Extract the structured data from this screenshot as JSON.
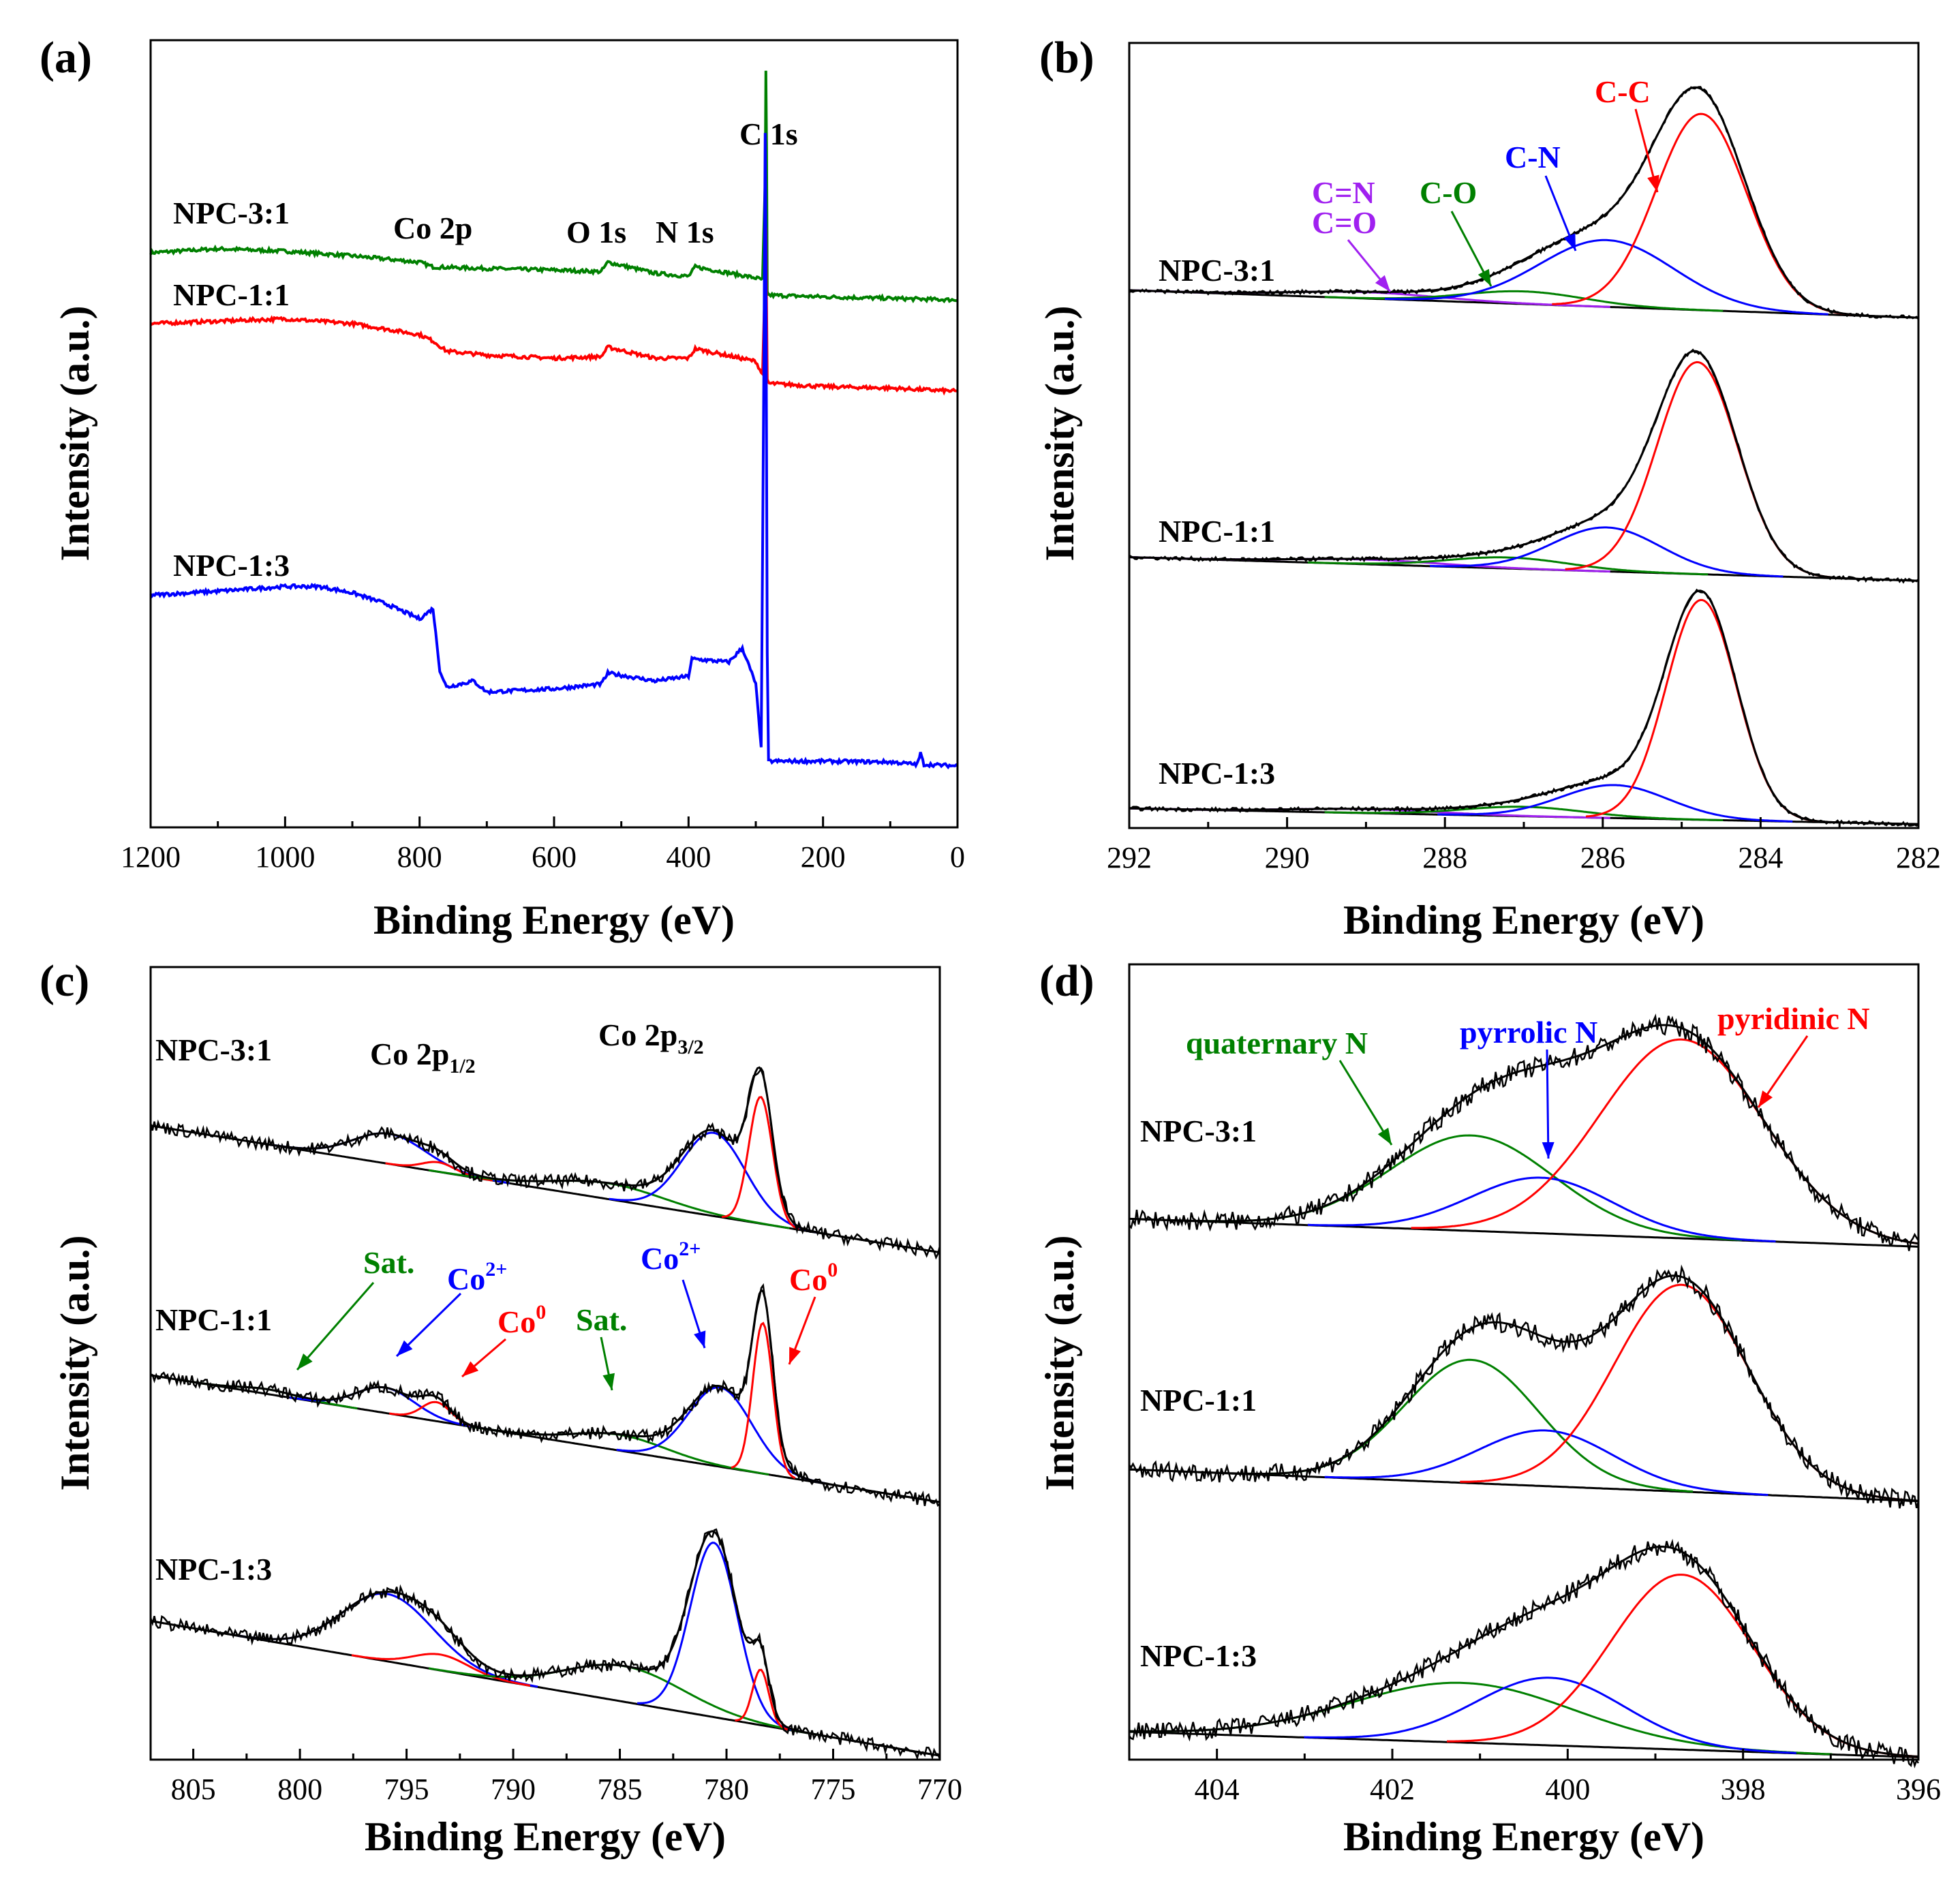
{
  "colors": {
    "black": "#000000",
    "red": "#ff0000",
    "blue": "#0000ff",
    "green": "#008000",
    "purple": "#a020f0"
  },
  "chart_data": [
    {
      "id": "a",
      "panel_label": "(a)",
      "type": "line",
      "title": "",
      "xlabel": "Binding Energy (eV)",
      "ylabel": "Intensity (a.u.)",
      "xlim": [
        1200,
        0
      ],
      "ylim": [
        0,
        100
      ],
      "xticks": [
        1200,
        1000,
        800,
        600,
        400,
        200,
        0
      ],
      "xtick_labels": [
        "1200",
        "1000",
        "800",
        "600",
        "400",
        "200",
        "0"
      ],
      "series": [
        {
          "name": "NPC-3:1",
          "color": "#008000",
          "x": [
            1200,
            1100,
            1000,
            900,
            800,
            780,
            700,
            600,
            530,
            520,
            450,
            400,
            390,
            300,
            290,
            286,
            285,
            284,
            283,
            280,
            200,
            100,
            0
          ],
          "values": [
            73.0,
            73.5,
            73.2,
            72.6,
            71.8,
            71.2,
            71.0,
            70.8,
            70.6,
            71.8,
            70.4,
            70.0,
            71.2,
            69.8,
            69.6,
            82.0,
            96.0,
            86.0,
            68.0,
            67.6,
            67.4,
            67.2,
            67.0
          ]
        },
        {
          "name": "NPC-1:1",
          "color": "#ff0000",
          "x": [
            1200,
            1100,
            1000,
            900,
            800,
            780,
            760,
            700,
            600,
            530,
            520,
            450,
            400,
            390,
            300,
            290,
            286,
            285,
            284,
            283,
            280,
            200,
            100,
            0
          ],
          "values": [
            64.0,
            64.3,
            64.6,
            64.0,
            62.6,
            61.8,
            60.5,
            60.0,
            59.6,
            59.8,
            61.0,
            59.6,
            59.6,
            60.8,
            59.2,
            57.5,
            70.0,
            76.0,
            66.0,
            56.8,
            56.4,
            56.0,
            55.8,
            55.4
          ]
        },
        {
          "name": "NPC-1:3",
          "color": "#0000ff",
          "x": [
            1200,
            1100,
            1000,
            950,
            900,
            850,
            800,
            780,
            770,
            760,
            720,
            700,
            600,
            530,
            520,
            450,
            400,
            395,
            340,
            320,
            300,
            292,
            288,
            286,
            285,
            284,
            283,
            281,
            280,
            200,
            100,
            60,
            55,
            50,
            0
          ],
          "values": [
            29.5,
            30.0,
            30.6,
            30.6,
            29.8,
            28.4,
            26.5,
            27.8,
            20.0,
            17.8,
            18.6,
            17.2,
            17.6,
            18.2,
            19.6,
            18.6,
            19.2,
            21.4,
            21.0,
            22.8,
            18.2,
            10.0,
            58.0,
            88.0,
            72.0,
            48.0,
            22.0,
            8.4,
            8.4,
            8.4,
            8.3,
            8.0,
            9.4,
            8.0,
            7.8
          ]
        }
      ],
      "sample_labels": [
        "NPC-3:1",
        "NPC-1:1",
        "NPC-1:3"
      ],
      "annotations": [
        {
          "text": "C 1s",
          "x": 285
        },
        {
          "text": "Co 2p",
          "x": 770
        },
        {
          "text": "O 1s",
          "x": 530
        },
        {
          "text": "N 1s",
          "x": 400
        }
      ]
    },
    {
      "id": "b",
      "panel_label": "(b)",
      "type": "line",
      "title": "",
      "xlabel": "Binding Energy (eV)",
      "ylabel": "Intensity (a.u.)",
      "xlim": [
        292,
        282
      ],
      "ylim": [
        0,
        100
      ],
      "xticks": [
        292,
        290,
        288,
        286,
        284,
        282
      ],
      "xtick_labels": [
        "292",
        "290",
        "288",
        "286",
        "284",
        "282"
      ],
      "components": [
        {
          "name": "C=N / C=O",
          "color": "#a020f0"
        },
        {
          "name": "C-O",
          "color": "#008000"
        },
        {
          "name": "C-N",
          "color": "#0000ff"
        },
        {
          "name": "C-C",
          "color": "#ff0000"
        }
      ],
      "samples": [
        {
          "name": "NPC-3:1",
          "baseline": [
            68.5,
            65.0
          ],
          "offset_y": 65.0,
          "peaks": [
            {
              "component": "C=N / C=O",
              "center": 289.0,
              "height": 0.8,
              "fwhm": 2.2
            },
            {
              "component": "C-O",
              "center": 287.0,
              "height": 1.6,
              "fwhm": 1.8
            },
            {
              "component": "C-N",
              "center": 285.95,
              "height": 8.5,
              "fwhm": 2.0
            },
            {
              "component": "C-C",
              "center": 284.75,
              "height": 25.0,
              "fwhm": 1.35
            }
          ]
        },
        {
          "name": "NPC-1:1",
          "baseline": [
            34.5,
            31.5
          ],
          "offset_y": 31.5,
          "peaks": [
            {
              "component": "C=N / C=O",
              "center": 289.0,
              "height": 0.6,
              "fwhm": 2.2
            },
            {
              "component": "C-O",
              "center": 287.2,
              "height": 1.4,
              "fwhm": 1.8
            },
            {
              "component": "C-N",
              "center": 285.95,
              "height": 5.6,
              "fwhm": 1.6
            },
            {
              "component": "C-C",
              "center": 284.8,
              "height": 27.0,
              "fwhm": 1.2
            }
          ]
        },
        {
          "name": "NPC-1:3",
          "baseline": [
            2.5,
            0.5
          ],
          "offset_y": 0.5,
          "peaks": [
            {
              "component": "C=N / C=O",
              "center": 289.0,
              "height": 0.5,
              "fwhm": 2.2
            },
            {
              "component": "C-O",
              "center": 287.0,
              "height": 1.2,
              "fwhm": 1.8
            },
            {
              "component": "C-N",
              "center": 285.85,
              "height": 4.2,
              "fwhm": 1.6
            },
            {
              "component": "C-C",
              "center": 284.75,
              "height": 28.0,
              "fwhm": 1.05
            }
          ]
        }
      ],
      "annotations": [
        {
          "text": "C-C",
          "component": "C-C"
        },
        {
          "text": "C-N",
          "component": "C-N"
        },
        {
          "text": "C-O",
          "component": "C-O"
        },
        {
          "text": "C=N",
          "component": "C=N / C=O"
        },
        {
          "text": "C=O",
          "component": "C=N / C=O"
        }
      ]
    },
    {
      "id": "c",
      "panel_label": "(c)",
      "type": "line",
      "title": "",
      "xlabel": "Binding Energy (eV)",
      "ylabel": "Intensity (a.u.)",
      "xlim": [
        807,
        770
      ],
      "ylim": [
        0,
        100
      ],
      "xticks": [
        805,
        800,
        795,
        790,
        785,
        780,
        775,
        770
      ],
      "xtick_labels": [
        "805",
        "800",
        "795",
        "790",
        "785",
        "780",
        "775",
        "770"
      ],
      "components": [
        {
          "name": "Sat.",
          "color": "#008000"
        },
        {
          "name": "Co2+",
          "color": "#0000ff"
        },
        {
          "name": "Co0",
          "color": "#ff0000"
        }
      ],
      "samples": [
        {
          "name": "NPC-3:1",
          "baseline": [
            80.0,
            64.0
          ],
          "offset_y": 64.0,
          "peaks": [
            {
              "component": "Co2+",
              "center": 795.8,
              "height": 3.8,
              "fwhm": 4.0
            },
            {
              "component": "Co0",
              "center": 793.5,
              "height": 1.2,
              "fwhm": 1.8
            },
            {
              "component": "Sat.",
              "center": 785.5,
              "height": 2.0,
              "fwhm": 6.0
            },
            {
              "component": "Co2+",
              "center": 780.6,
              "height": 10.5,
              "fwhm": 3.5
            },
            {
              "component": "Co0",
              "center": 778.4,
              "height": 16.0,
              "fwhm": 1.3
            }
          ]
        },
        {
          "name": "NPC-1:1",
          "baseline": [
            48.5,
            32.5
          ],
          "offset_y": 32.5,
          "peaks": [
            {
              "component": "Sat.",
              "center": 801.5,
              "height": 0.6,
              "fwhm": 3.0
            },
            {
              "component": "Co2+",
              "center": 796.0,
              "height": 3.2,
              "fwhm": 3.2
            },
            {
              "component": "Co0",
              "center": 793.6,
              "height": 2.4,
              "fwhm": 1.6
            },
            {
              "component": "Sat.",
              "center": 785.0,
              "height": 2.0,
              "fwhm": 5.0
            },
            {
              "component": "Co2+",
              "center": 780.3,
              "height": 10.0,
              "fwhm": 3.5
            },
            {
              "component": "Co0",
              "center": 778.3,
              "height": 19.0,
              "fwhm": 1.1
            }
          ]
        },
        {
          "name": "NPC-1:3",
          "baseline": [
            17.5,
            0.5
          ],
          "offset_y": 0.5,
          "peaks": [
            {
              "component": "Co2+",
              "center": 795.9,
              "height": 8.5,
              "fwhm": 5.0
            },
            {
              "component": "Co0",
              "center": 793.4,
              "height": 2.0,
              "fwhm": 3.0
            },
            {
              "component": "Sat.",
              "center": 784.8,
              "height": 4.5,
              "fwhm": 6.5
            },
            {
              "component": "Co2+",
              "center": 780.6,
              "height": 22.0,
              "fwhm": 2.6
            },
            {
              "component": "Co0",
              "center": 778.4,
              "height": 7.0,
              "fwhm": 0.9
            }
          ]
        }
      ],
      "annotations": [
        {
          "text": "Co 2p",
          "sub": "1/2"
        },
        {
          "text": "Co 2p",
          "sub": "3/2"
        },
        {
          "text": "Sat.",
          "component": "Sat."
        },
        {
          "text": "Co",
          "sup": "2+",
          "component": "Co2+"
        },
        {
          "text": "Co",
          "sup": "0",
          "component": "Co0"
        },
        {
          "text": "Sat.",
          "component": "Sat."
        },
        {
          "text": "Co",
          "sup": "2+",
          "component": "Co2+"
        },
        {
          "text": "Co",
          "sup": "0",
          "component": "Co0"
        }
      ]
    },
    {
      "id": "d",
      "panel_label": "(d)",
      "type": "line",
      "title": "",
      "xlabel": "Binding Energy (eV)",
      "ylabel": "Intensity (a.u.)",
      "xlim": [
        405,
        396
      ],
      "ylim": [
        0,
        100
      ],
      "xticks": [
        404,
        402,
        400,
        398,
        396
      ],
      "xtick_labels": [
        "404",
        "402",
        "400",
        "398",
        "396"
      ],
      "components": [
        {
          "name": "quaternary N",
          "color": "#008000"
        },
        {
          "name": "pyrrolic N",
          "color": "#0000ff"
        },
        {
          "name": "pyridinic N",
          "color": "#ff0000"
        }
      ],
      "samples": [
        {
          "name": "NPC-3:1",
          "baseline": [
            68.0,
            64.5
          ],
          "offset_y": 64.5,
          "peaks": [
            {
              "component": "quaternary N",
              "center": 401.1,
              "height": 12.0,
              "fwhm": 2.2
            },
            {
              "component": "pyrrolic N",
              "center": 400.3,
              "height": 7.0,
              "fwhm": 1.9
            },
            {
              "component": "pyridinic N",
              "center": 398.7,
              "height": 25.0,
              "fwhm": 2.2
            }
          ]
        },
        {
          "name": "NPC-1:1",
          "baseline": [
            36.5,
            32.5
          ],
          "offset_y": 32.5,
          "peaks": [
            {
              "component": "quaternary N",
              "center": 401.1,
              "height": 15.5,
              "fwhm": 1.8
            },
            {
              "component": "pyrrolic N",
              "center": 400.25,
              "height": 7.0,
              "fwhm": 1.8
            },
            {
              "component": "pyridinic N",
              "center": 398.7,
              "height": 26.0,
              "fwhm": 1.8
            }
          ]
        },
        {
          "name": "NPC-1:3",
          "baseline": [
            3.5,
            0.3
          ],
          "offset_y": 0.3,
          "peaks": [
            {
              "component": "quaternary N",
              "center": 401.2,
              "height": 7.5,
              "fwhm": 3.0
            },
            {
              "component": "pyrrolic N",
              "center": 400.2,
              "height": 8.5,
              "fwhm": 2.0
            },
            {
              "component": "pyridinic N",
              "center": 398.7,
              "height": 22.0,
              "fwhm": 1.9
            }
          ]
        }
      ],
      "annotations": [
        {
          "text": "quaternary N",
          "component": "quaternary N"
        },
        {
          "text": "pyrrolic N",
          "component": "pyrrolic N"
        },
        {
          "text": "pyridinic N",
          "component": "pyridinic N"
        }
      ]
    }
  ]
}
